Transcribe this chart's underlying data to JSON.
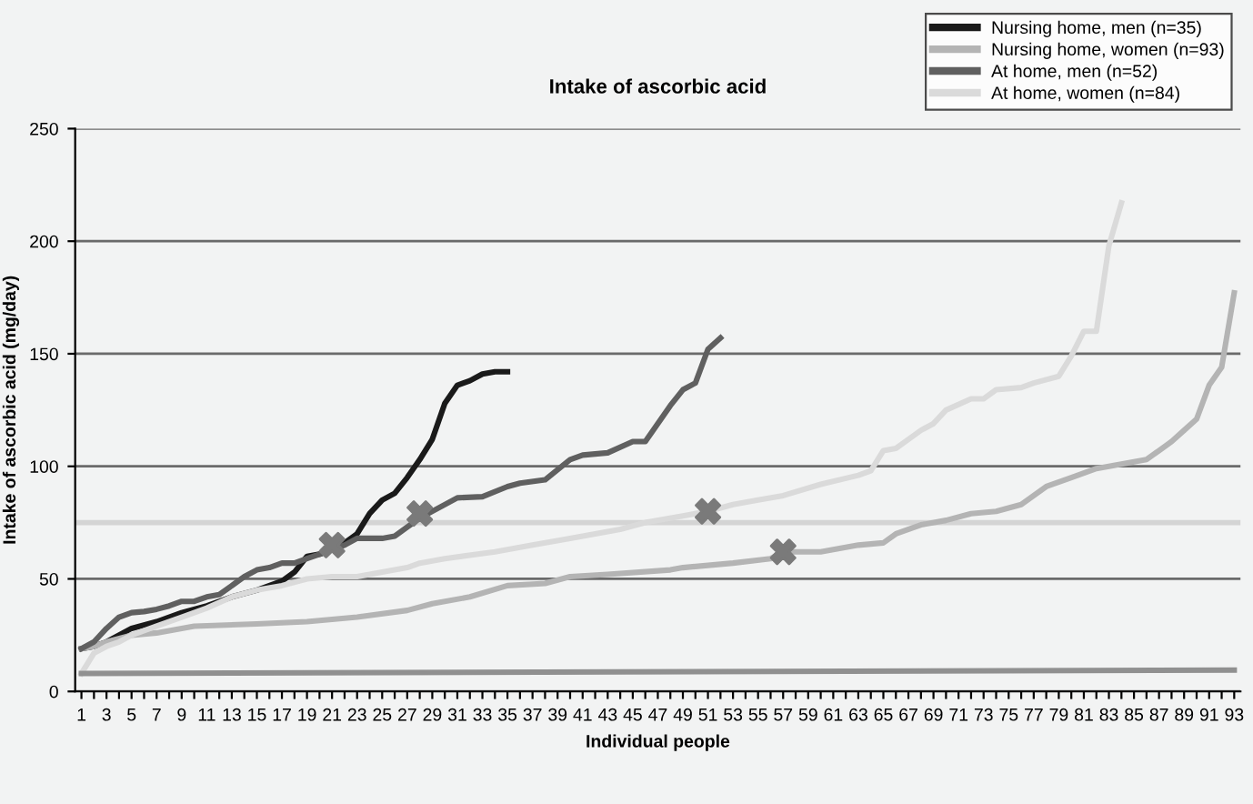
{
  "chart_data": {
    "type": "line",
    "title": "Intake of ascorbic acid",
    "xlabel": "Individual people",
    "ylabel": "Intake of ascorbic acid (mg/day)",
    "xlim": [
      0.5,
      93.5
    ],
    "ylim": [
      0,
      250
    ],
    "yticks": [
      0,
      50,
      100,
      150,
      200,
      250
    ],
    "xticks": [
      1,
      {
        "value": 2,
        "label": null
      },
      3,
      {
        "value": 4,
        "label": null
      },
      5,
      {
        "value": 6,
        "label": null
      },
      7,
      {
        "value": 8,
        "label": null
      },
      9,
      {
        "value": 10,
        "label": null
      },
      11,
      {
        "value": 12,
        "label": null
      },
      13,
      {
        "value": 14,
        "label": null
      },
      15,
      {
        "value": 16,
        "label": null
      },
      17,
      {
        "value": 18,
        "label": null
      },
      19,
      {
        "value": 20,
        "label": null
      },
      21,
      {
        "value": 22,
        "label": null
      },
      23,
      {
        "value": 24,
        "label": null
      },
      25,
      {
        "value": 26,
        "label": null
      },
      27,
      {
        "value": 28,
        "label": null
      },
      29,
      {
        "value": 30,
        "label": null
      },
      31,
      {
        "value": 32,
        "label": null
      },
      33,
      {
        "value": 34,
        "label": null
      },
      35,
      {
        "value": 36,
        "label": null
      },
      37,
      {
        "value": 38,
        "label": null
      },
      39,
      {
        "value": 40,
        "label": null
      },
      41,
      {
        "value": 42,
        "label": null
      },
      43,
      {
        "value": 44,
        "label": null
      },
      45,
      {
        "value": 46,
        "label": null
      },
      47,
      {
        "value": 48,
        "label": null
      },
      49,
      {
        "value": 50,
        "label": null
      },
      51,
      {
        "value": 52,
        "label": null
      },
      53,
      {
        "value": 54,
        "label": null
      },
      55,
      {
        "value": 56,
        "label": null
      },
      57,
      {
        "value": 58,
        "label": null
      },
      59,
      {
        "value": 60,
        "label": null
      },
      61,
      {
        "value": 62,
        "label": null
      },
      63,
      {
        "value": 64,
        "label": null
      },
      65,
      {
        "value": 66,
        "label": null
      },
      67,
      {
        "value": 68,
        "label": null
      },
      69,
      {
        "value": 70,
        "label": null
      },
      71,
      {
        "value": 72,
        "label": null
      },
      73,
      {
        "value": 74,
        "label": null
      },
      75,
      {
        "value": 76,
        "label": null
      },
      77,
      {
        "value": 78,
        "label": null
      },
      79,
      {
        "value": 80,
        "label": null
      },
      81,
      {
        "value": 82,
        "label": null
      },
      83,
      {
        "value": 84,
        "label": null
      },
      85,
      {
        "value": 86,
        "label": null
      },
      87,
      {
        "value": 88,
        "label": null
      },
      89,
      {
        "value": 90,
        "label": null
      },
      91,
      {
        "value": 92,
        "label": null
      },
      93
    ],
    "grid": "y",
    "legend": "top right",
    "marker": "none",
    "line_style": "solid",
    "ref_lines": [
      {
        "axis": "y",
        "value": 75,
        "color": "#d4d4d4"
      }
    ],
    "series": [
      {
        "name": "Nursing home, men (n=35)",
        "color": "#1a1a1a",
        "x": [
          1,
          2,
          3,
          5,
          7,
          9,
          11,
          13,
          15,
          17,
          18,
          19,
          20,
          21,
          22,
          23,
          24,
          25,
          26,
          27,
          28,
          29,
          30,
          31,
          32,
          33,
          34,
          35
        ],
        "values": [
          19,
          20,
          22,
          28,
          31,
          35,
          38,
          42,
          45,
          49,
          53,
          60,
          61,
          63,
          66,
          70,
          79,
          85,
          88,
          95,
          103,
          112,
          128,
          136,
          138,
          141,
          142,
          142
        ]
      },
      {
        "name": "Nursing home, women (n=93)",
        "color": "#b4b4b4",
        "x": [
          1,
          2,
          3,
          5,
          7,
          10,
          15,
          19,
          23,
          27,
          29,
          32,
          35,
          38,
          40,
          43,
          48,
          49,
          53,
          56,
          57,
          60,
          63,
          65,
          66,
          68,
          70,
          72,
          74,
          76,
          78,
          80,
          82,
          84,
          86,
          87,
          88,
          89,
          90,
          91,
          92,
          93
        ],
        "values": [
          19,
          20,
          22,
          25,
          26,
          29,
          30,
          31,
          33,
          36,
          39,
          42,
          47,
          48,
          51,
          52,
          54,
          55,
          57,
          59,
          62,
          62,
          65,
          66,
          70,
          74,
          76,
          79,
          80,
          83,
          91,
          95,
          99,
          101,
          103,
          107,
          111,
          116,
          121,
          136,
          144,
          177
        ]
      },
      {
        "name": "At home, men (n=52)",
        "color": "#606060",
        "x": [
          1,
          2,
          3,
          4,
          5,
          6,
          7,
          8,
          9,
          10,
          11,
          12,
          13,
          14,
          15,
          16,
          17,
          18,
          19,
          20,
          21,
          22,
          23,
          24,
          25,
          26,
          27,
          28,
          31,
          33,
          35,
          36,
          38,
          40,
          41,
          43,
          45,
          46,
          48,
          49,
          50,
          51,
          52
        ],
        "values": [
          19,
          22,
          28,
          33,
          35,
          35.5,
          36.5,
          38,
          40,
          40,
          42,
          43,
          47,
          51,
          54,
          55,
          57,
          57,
          59,
          61,
          63,
          65,
          68,
          68,
          68,
          69,
          73,
          77,
          86,
          86.5,
          91,
          92.5,
          94,
          103,
          105,
          106,
          111,
          111,
          127,
          134,
          137,
          152,
          157
        ]
      },
      {
        "name": "At home, women (n=84)",
        "color": "#dadada",
        "x": [
          1,
          2,
          3,
          4,
          5,
          7,
          9,
          11,
          13,
          15,
          17,
          19,
          21,
          23,
          25,
          27,
          28,
          30,
          34,
          37,
          40,
          42,
          44,
          46,
          49,
          51,
          53,
          55,
          57,
          60,
          63,
          64,
          65,
          66,
          68,
          69,
          70,
          72,
          73,
          74,
          76,
          77,
          79,
          80,
          81,
          82,
          83,
          84
        ],
        "values": [
          8,
          17,
          20,
          22,
          25,
          29,
          33,
          37,
          42,
          45,
          47,
          50,
          51,
          51,
          53,
          55,
          57,
          59,
          62,
          65,
          68,
          70,
          72,
          75,
          78,
          80,
          83,
          85,
          87,
          92,
          96,
          98,
          107,
          108,
          116,
          119,
          125,
          130,
          130,
          134,
          135,
          137,
          140,
          149,
          160,
          160,
          198,
          217
        ]
      },
      {
        "color": "#909090",
        "x": [
          1,
          93
        ],
        "values": [
          8,
          9.5
        ]
      },
      {
        "type": "scatter",
        "color": "#7a7a7a",
        "marker": "cross",
        "x": [
          21,
          28,
          51,
          57
        ],
        "values": [
          65,
          79,
          80,
          62
        ]
      }
    ]
  }
}
